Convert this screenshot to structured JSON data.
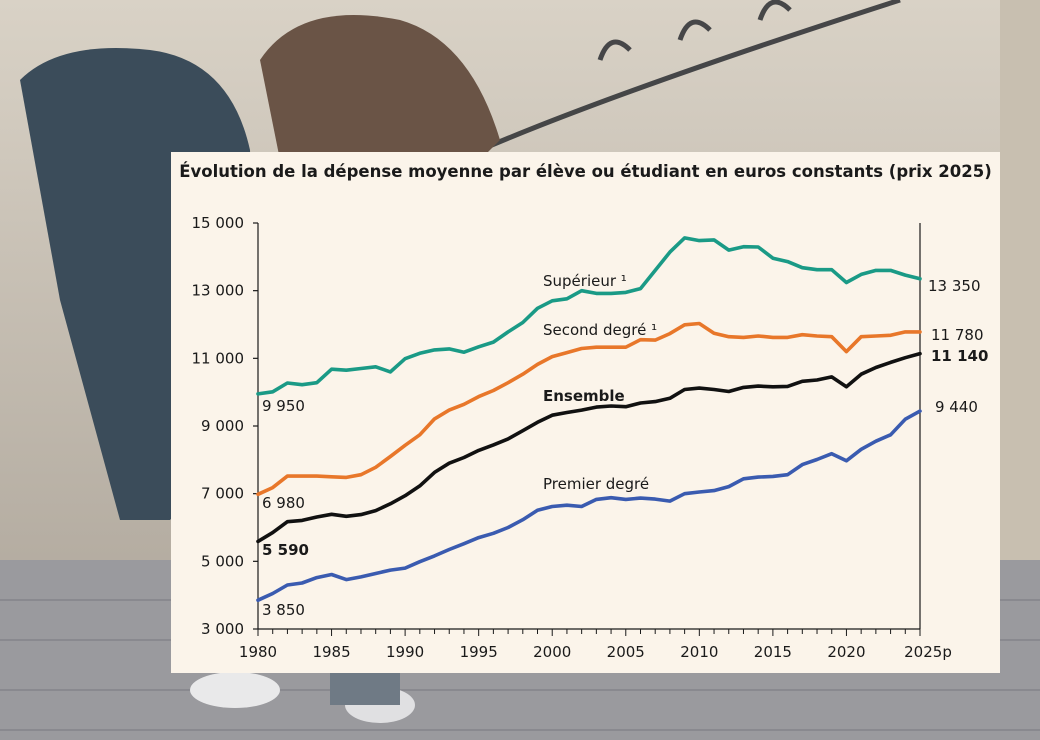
{
  "chart_data": {
    "type": "line",
    "title": "Évolution de la dépense moyenne par élève ou étudiant en euros constants (prix 2025)",
    "xlabel": "",
    "ylabel": "",
    "xlim": [
      1980,
      2025
    ],
    "ylim": [
      3000,
      15000
    ],
    "grid": false,
    "y_ticks": [
      "3 000",
      "5 000",
      "7 000",
      "9 000",
      "11 000",
      "13 000",
      "15 000"
    ],
    "x_ticks": [
      "1980",
      "1985",
      "1990",
      "1995",
      "2000",
      "2005",
      "2010",
      "2015",
      "2020",
      "2025p"
    ],
    "x": [
      1980,
      1981,
      1982,
      1983,
      1984,
      1985,
      1986,
      1987,
      1988,
      1989,
      1990,
      1991,
      1992,
      1993,
      1994,
      1995,
      1996,
      1997,
      1998,
      1999,
      2000,
      2001,
      2002,
      2003,
      2004,
      2005,
      2006,
      2007,
      2008,
      2009,
      2010,
      2011,
      2012,
      2013,
      2014,
      2015,
      2016,
      2017,
      2018,
      2019,
      2020,
      2021,
      2022,
      2023,
      2024,
      2025
    ],
    "series": [
      {
        "name": "Supérieur ¹",
        "color": "#1a9a86",
        "bold": false,
        "values": [
          9950,
          10010,
          10270,
          10220,
          10280,
          10680,
          10650,
          10700,
          10750,
          10600,
          10990,
          11150,
          11250,
          11280,
          11180,
          11340,
          11480,
          11780,
          12060,
          12480,
          12700,
          12760,
          13000,
          12920,
          12920,
          12950,
          13060,
          13600,
          14140,
          14560,
          14480,
          14500,
          14200,
          14300,
          14290,
          13960,
          13860,
          13680,
          13620,
          13620,
          13240,
          13480,
          13600,
          13600,
          13460,
          13350
        ]
      },
      {
        "name": "Second degré ¹",
        "color": "#e8772a",
        "bold": false,
        "values": [
          6980,
          7180,
          7520,
          7520,
          7520,
          7500,
          7480,
          7560,
          7780,
          8100,
          8430,
          8740,
          9210,
          9470,
          9640,
          9870,
          10050,
          10280,
          10530,
          10820,
          11050,
          11170,
          11290,
          11330,
          11330,
          11330,
          11550,
          11540,
          11730,
          11990,
          12030,
          11740,
          11640,
          11620,
          11660,
          11620,
          11620,
          11700,
          11660,
          11640,
          11200,
          11640,
          11660,
          11680,
          11780,
          11780
        ]
      },
      {
        "name": "Ensemble",
        "color": "#111111",
        "bold": true,
        "values": [
          5590,
          5850,
          6170,
          6210,
          6310,
          6390,
          6330,
          6380,
          6500,
          6700,
          6940,
          7230,
          7630,
          7900,
          8070,
          8280,
          8440,
          8620,
          8860,
          9110,
          9320,
          9400,
          9470,
          9560,
          9590,
          9570,
          9680,
          9720,
          9820,
          10080,
          10120,
          10080,
          10020,
          10140,
          10180,
          10160,
          10170,
          10320,
          10360,
          10450,
          10160,
          10530,
          10730,
          10880,
          11020,
          11140
        ]
      },
      {
        "name": "Premier degré",
        "color": "#3a5bb0",
        "bold": false,
        "values": [
          3850,
          4050,
          4300,
          4360,
          4520,
          4610,
          4460,
          4540,
          4640,
          4740,
          4800,
          4990,
          5160,
          5350,
          5520,
          5700,
          5830,
          6000,
          6230,
          6510,
          6620,
          6660,
          6620,
          6830,
          6880,
          6830,
          6870,
          6840,
          6780,
          7000,
          7050,
          7090,
          7210,
          7440,
          7490,
          7510,
          7560,
          7860,
          8010,
          8180,
          7970,
          8310,
          8550,
          8740,
          9200,
          9440
        ]
      }
    ],
    "annotations": {
      "start_superieur": "9 950",
      "start_second": "6 980",
      "start_ensemble": "5 590",
      "start_premier": "3 850",
      "end_superieur": "13 350",
      "end_second": "11 780",
      "end_ensemble": "11 140",
      "end_premier": "9 440"
    }
  }
}
